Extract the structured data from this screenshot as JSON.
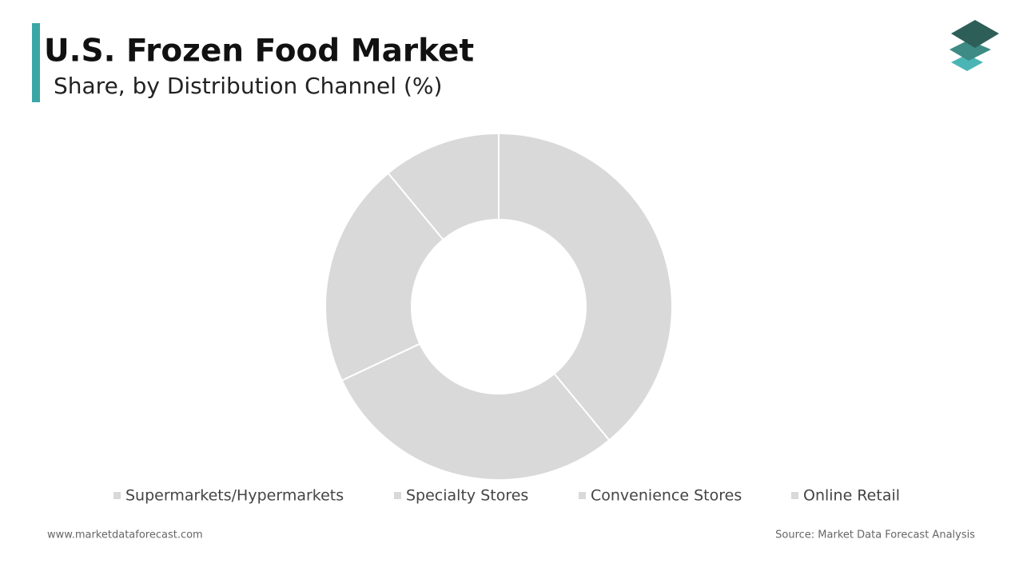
{
  "chart_data": {
    "type": "donut",
    "title": "U.S. Frozen Food Market",
    "subtitle": "Share, by Distribution Channel (%)",
    "categories": [
      "Supermarkets/Hypermarkets",
      "Specialty Stores",
      "Convenience Stores",
      "Online Retail"
    ],
    "values": [
      39,
      29,
      21,
      11
    ],
    "colors": [
      "#d9d9d9",
      "#d9d9d9",
      "#d9d9d9",
      "#d9d9d9"
    ],
    "legend": "bottom"
  },
  "footer": {
    "website": "www.marketdataforecast.com",
    "source": "Source: Market Data Forecast Analysis"
  }
}
